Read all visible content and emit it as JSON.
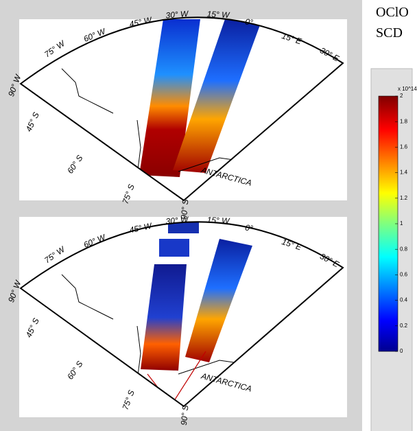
{
  "labels": {
    "title_line1": "OClO",
    "title_line2": "SCD"
  },
  "maps": [
    {
      "longitude_labels": [
        "90° W",
        "75° W",
        "60° W",
        "45° W",
        "30° W",
        "15° W",
        "0°",
        "15° E",
        "30° E"
      ],
      "latitude_labels": [
        "45° S",
        "60° S",
        "75° S",
        "90° S"
      ],
      "region_label": "ANTARCTICA"
    },
    {
      "longitude_labels": [
        "90° W",
        "75° W",
        "60° W",
        "45° W",
        "30° W",
        "15° W",
        "0°",
        "15° E",
        "30° E"
      ],
      "latitude_labels": [
        "45° S",
        "60° S",
        "75° S",
        "90° S"
      ],
      "region_label": "ANTARCTICA"
    }
  ],
  "colorbar": {
    "multiplier": "x 10^14",
    "range": [
      0,
      2
    ],
    "ticks": [
      0,
      0.2,
      0.4,
      0.6,
      0.8,
      1,
      1.2,
      1.4,
      1.6,
      1.8,
      2
    ]
  }
}
